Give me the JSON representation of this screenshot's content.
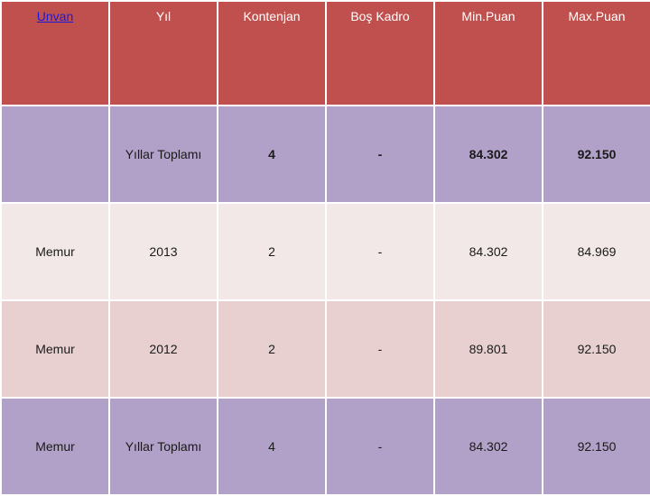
{
  "header": {
    "columns": [
      "Unvan",
      "Yıl",
      "Kontenjan",
      "Boş Kadro",
      "Min.Puan",
      "Max.Puan"
    ]
  },
  "rows": [
    {
      "style": "total",
      "cells": [
        "",
        "Yıllar Toplamı",
        "4",
        "-",
        "84.302",
        "92.150"
      ]
    },
    {
      "style": "light",
      "cells": [
        "Memur",
        "2013",
        "2",
        "-",
        "84.302",
        "84.969"
      ]
    },
    {
      "style": "pink",
      "cells": [
        "Memur",
        "2012",
        "2",
        "-",
        "89.801",
        "92.150"
      ]
    },
    {
      "style": "purple",
      "cells": [
        "Memur",
        "Yıllar Toplamı",
        "4",
        "-",
        "84.302",
        "92.150"
      ]
    }
  ],
  "colors": {
    "header": "#c0504d",
    "total_row": "#b1a0c7",
    "row_light": "#f2e8e8",
    "row_pink": "#e8d0d0",
    "link": "#1a1adb"
  }
}
